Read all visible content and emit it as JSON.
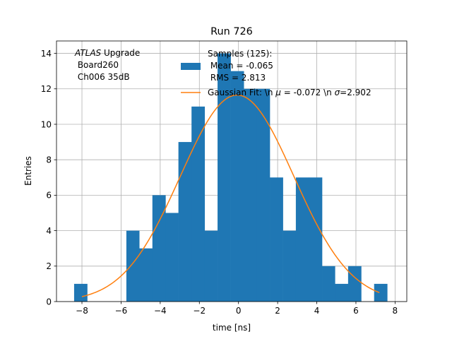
{
  "chart_data": {
    "type": "bar",
    "title": "Run 726",
    "xlabel": "time [ns]",
    "ylabel": "Entries",
    "xlim": [
      -9.3,
      8.6
    ],
    "ylim": [
      0,
      14.7
    ],
    "xticks": [
      -8,
      -6,
      -4,
      -2,
      0,
      2,
      4,
      6,
      8
    ],
    "xtick_labels": [
      "−8",
      "−6",
      "−4",
      "−2",
      "0",
      "2",
      "4",
      "6",
      "8"
    ],
    "yticks": [
      0,
      2,
      4,
      6,
      8,
      10,
      12,
      14
    ],
    "ytick_labels": [
      "0",
      "2",
      "4",
      "6",
      "8",
      "10",
      "12",
      "14"
    ],
    "grid": true,
    "annotation": {
      "italic": "ATLAS",
      "rest": " Upgrade",
      "line2": " Board260",
      "line3": " Ch006 35dB"
    },
    "legend": {
      "placement": "top-right",
      "samples_line1": "Samples (125):",
      "samples_line2": " Mean = -0.065",
      "samples_line3": " RMS = 2.813",
      "fit_prefix": "Gaussian Fit: \\n ",
      "fit_mu_symbol": "μ",
      "fit_mid": " = -0.072 \\n ",
      "fit_sigma_symbol": "σ",
      "fit_suffix": "=2.902"
    },
    "histogram": {
      "name": "Samples (125):",
      "color": "#1f77b4",
      "bin_edges": [
        -8.4,
        -7.73,
        -7.07,
        -6.4,
        -5.73,
        -5.07,
        -4.4,
        -3.73,
        -3.07,
        -2.4,
        -1.73,
        -1.07,
        -0.4,
        0.27,
        0.93,
        1.6,
        2.27,
        2.93,
        3.6,
        4.27,
        4.93,
        5.6,
        6.27,
        6.93,
        7.6
      ],
      "counts": [
        1,
        0,
        0,
        0,
        4,
        3,
        6,
        5,
        9,
        11,
        4,
        14,
        13,
        12,
        12,
        7,
        4,
        7,
        7,
        2,
        1,
        2,
        0,
        1
      ]
    },
    "fit": {
      "name": "Gaussian Fit",
      "color": "#ff7f0e",
      "amplitude": 11.65,
      "mu": -0.072,
      "sigma": 2.902,
      "x_range": [
        -8.0,
        7.2
      ]
    }
  }
}
